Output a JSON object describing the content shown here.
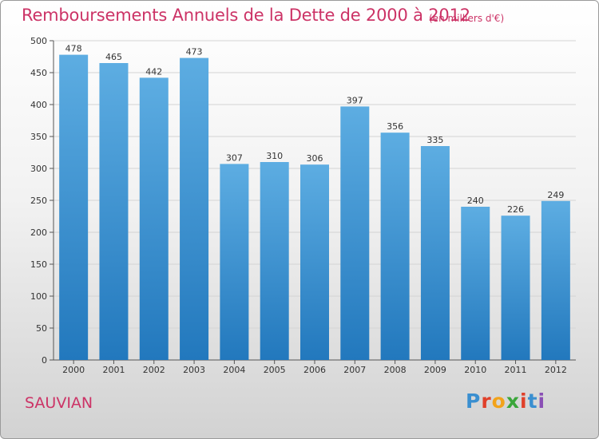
{
  "title": "Remboursements Annuels de la Dette de 2000 à 2012",
  "unit_note": "(en milliers d'€)",
  "commune": "SAUVIAN",
  "logo_text": "Proxiti",
  "colors": {
    "accent": "#cc3366",
    "bar_top": "#5dade2",
    "bar_bottom": "#2278bd"
  },
  "chart_data": {
    "type": "bar",
    "title": "Remboursements Annuels de la Dette de 2000 à 2012",
    "xlabel": "",
    "ylabel": "",
    "categories": [
      "2000",
      "2001",
      "2002",
      "2003",
      "2004",
      "2005",
      "2006",
      "2007",
      "2008",
      "2009",
      "2010",
      "2011",
      "2012"
    ],
    "values": [
      478,
      465,
      442,
      473,
      307,
      310,
      306,
      397,
      356,
      335,
      240,
      226,
      249
    ],
    "ylim": [
      0,
      500
    ],
    "yticks": [
      0,
      50,
      100,
      150,
      200,
      250,
      300,
      350,
      400,
      450,
      500
    ],
    "grid": true
  }
}
